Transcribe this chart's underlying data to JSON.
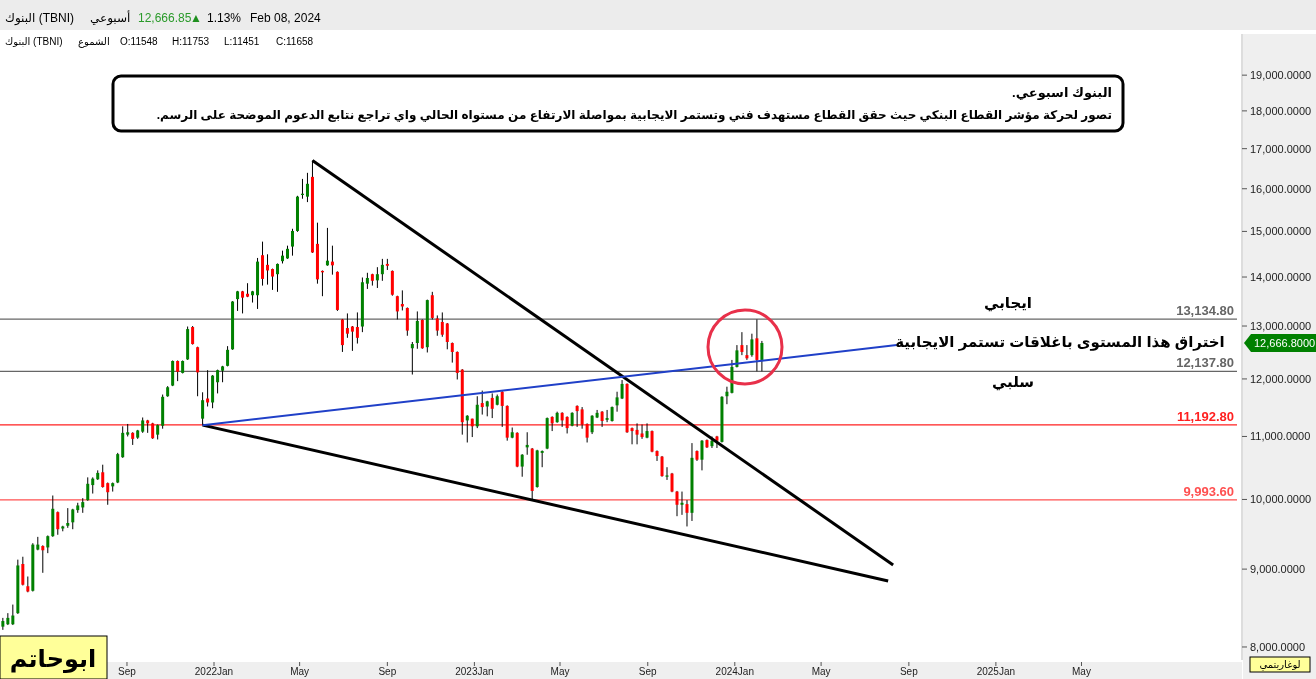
{
  "chart_data": {
    "type": "candlestick",
    "title": "البنوك اسبوعي.",
    "subtitle": "تصور لحركة مؤشر القطاع البنكي حيث حقق القطاع مستهدف فني وتستمر الايجابية بمواصلة الارتفاع من مستواه الحالي واي تراجع نتابع الدعوم الموضحة على الرسم.",
    "log": "y",
    "colors": [
      "#008000",
      "#008000",
      "#008000",
      "#008000",
      "#ff0000",
      "#ff0000",
      "#008000",
      "#008000",
      "#ff0000",
      "#008000",
      "#008000",
      "#ff0000",
      "#008000",
      "#008000",
      "#008000",
      "#008000",
      "#008000",
      "#008000",
      "#008000",
      "#008000",
      "#ff0000",
      "#ff0000",
      "#008000",
      "#008000",
      "#008000",
      "#008000",
      "#ff0000",
      "#008000",
      "#008000",
      "#ff0000",
      "#ff0000",
      "#008000",
      "#008000",
      "#008000",
      "#008000",
      "#ff0000",
      "#008000",
      "#008000",
      "#ff0000",
      "#ff0000",
      "#008000",
      "#ff0000",
      "#008000",
      "#008000",
      "#008000",
      "#008000",
      "#008000",
      "#008000",
      "#ff0000",
      "#ff0000",
      "#008000",
      "#008000",
      "#ff0000",
      "#ff0000",
      "#ff0000",
      "#008000",
      "#008000",
      "#008000",
      "#008000",
      "#008000",
      "#008000",
      "#008000",
      "#ff0000",
      "#ff0000",
      "#ff0000",
      "#008000",
      "#ff0000",
      "#ff0000",
      "#ff0000",
      "#ff0000",
      "#ff0000",
      "#ff0000",
      "#008000",
      "#008000",
      "#ff0000",
      "#008000",
      "#008000",
      "#ff0000",
      "#ff0000",
      "#ff0000",
      "#ff0000",
      "#ff0000",
      "#008000",
      "#008000",
      "#ff0000",
      "#008000",
      "#ff0000",
      "#ff0000",
      "#ff0000",
      "#ff0000",
      "#ff0000",
      "#ff0000",
      "#ff0000",
      "#008000",
      "#ff0000",
      "#008000",
      "#ff0000",
      "#008000",
      "#ff0000",
      "#008000",
      "#ff0000",
      "#ff0000",
      "#008000",
      "#ff0000",
      "#008000",
      "#008000",
      "#ff0000",
      "#008000",
      "#008000",
      "#008000",
      "#ff0000",
      "#008000",
      "#ff0000",
      "#ff0000",
      "#008000",
      "#ff0000",
      "#ff0000",
      "#ff0000",
      "#008000",
      "#008000",
      "#ff0000",
      "#008000",
      "#008000",
      "#008000",
      "#008000",
      "#ff0000",
      "#ff0000",
      "#ff0000",
      "#ff0000",
      "#008000",
      "#ff0000",
      "#ff0000",
      "#ff0000",
      "#008000",
      "#ff0000",
      "#ff0000",
      "#008000",
      "#ff0000",
      "#008000",
      "#ff0000",
      "#008000",
      "#ff0000",
      "#008000",
      "#ff0000",
      "#008000",
      "#008000",
      "#008000",
      "#008000",
      "#ff0000",
      "#ff0000",
      "#008000",
      "#ff0000",
      "#008000"
    ],
    "xlim": [
      "2021-03-07",
      "2025-12-12"
    ],
    "xticks": [
      {
        "value": "2021-09-01",
        "label": "Sep"
      },
      {
        "value": "2022-01-01",
        "label": "2022Jan"
      },
      {
        "value": "2022-05-01",
        "label": "May"
      },
      {
        "value": "2022-09-01",
        "label": "Sep"
      },
      {
        "value": "2023-01-01",
        "label": "2023Jan"
      },
      {
        "value": "2023-05-01",
        "label": "May"
      },
      {
        "value": "2023-09-01",
        "label": "Sep"
      },
      {
        "value": "2024-01-01",
        "label": "2024Jan"
      },
      {
        "value": "2024-05-01",
        "label": "May"
      },
      {
        "value": "2024-09-01",
        "label": "Sep"
      },
      {
        "value": "2025-01-01",
        "label": "2025Jan"
      },
      {
        "value": "2025-05-01",
        "label": "May"
      }
    ],
    "ylim": [
      7844,
      20220
    ],
    "yticks": [
      {
        "value": 8000,
        "label": "8,000.0000"
      },
      {
        "value": 9000,
        "label": "9,000.0000"
      },
      {
        "value": 10000,
        "label": "10,000.0000"
      },
      {
        "value": 11000,
        "label": "11,000.0000"
      },
      {
        "value": 12000,
        "label": "12,000.0000"
      },
      {
        "value": 13000,
        "label": "13,000.0000"
      },
      {
        "value": 14000,
        "label": "14,000.0000"
      },
      {
        "value": 15000,
        "label": "15,000.0000"
      },
      {
        "value": 16000,
        "label": "16,000.0000"
      },
      {
        "value": 17000,
        "label": "17,000.0000"
      },
      {
        "value": 18000,
        "label": "18,000.0000"
      },
      {
        "value": 19000,
        "label": "19,000.0000"
      }
    ],
    "x": [
      "2021-03-11",
      "2021-03-18",
      "2021-03-25",
      "2021-04-01",
      "2021-04-08",
      "2021-04-15",
      "2021-04-22",
      "2021-04-29",
      "2021-05-06",
      "2021-05-13",
      "2021-05-20",
      "2021-05-27",
      "2021-06-03",
      "2021-06-10",
      "2021-06-17",
      "2021-06-24",
      "2021-07-01",
      "2021-07-08",
      "2021-07-15",
      "2021-07-22",
      "2021-07-29",
      "2021-08-05",
      "2021-08-12",
      "2021-08-19",
      "2021-08-26",
      "2021-09-02",
      "2021-09-09",
      "2021-09-16",
      "2021-09-23",
      "2021-09-30",
      "2021-10-07",
      "2021-10-14",
      "2021-10-21",
      "2021-10-28",
      "2021-11-04",
      "2021-11-11",
      "2021-11-18",
      "2021-11-25",
      "2021-12-02",
      "2021-12-09",
      "2021-12-16",
      "2021-12-23",
      "2021-12-30",
      "2022-01-06",
      "2022-01-13",
      "2022-01-20",
      "2022-01-27",
      "2022-02-03",
      "2022-02-10",
      "2022-02-17",
      "2022-02-24",
      "2022-03-03",
      "2022-03-10",
      "2022-03-17",
      "2022-03-24",
      "2022-03-31",
      "2022-04-07",
      "2022-04-14",
      "2022-04-21",
      "2022-04-28",
      "2022-05-05",
      "2022-05-12",
      "2022-05-19",
      "2022-05-26",
      "2022-06-02",
      "2022-06-09",
      "2022-06-16",
      "2022-06-23",
      "2022-06-30",
      "2022-07-07",
      "2022-07-14",
      "2022-07-21",
      "2022-07-28",
      "2022-08-04",
      "2022-08-11",
      "2022-08-18",
      "2022-08-25",
      "2022-09-01",
      "2022-09-08",
      "2022-09-15",
      "2022-09-22",
      "2022-09-29",
      "2022-10-06",
      "2022-10-13",
      "2022-10-20",
      "2022-10-27",
      "2022-11-03",
      "2022-11-10",
      "2022-11-17",
      "2022-11-24",
      "2022-12-01",
      "2022-12-08",
      "2022-12-15",
      "2022-12-22",
      "2022-12-29",
      "2023-01-05",
      "2023-01-12",
      "2023-01-19",
      "2023-01-26",
      "2023-02-02",
      "2023-02-09",
      "2023-02-16",
      "2023-02-23",
      "2023-03-02",
      "2023-03-09",
      "2023-03-16",
      "2023-03-23",
      "2023-03-30",
      "2023-04-06",
      "2023-04-13",
      "2023-04-20",
      "2023-04-27",
      "2023-05-04",
      "2023-05-11",
      "2023-05-18",
      "2023-05-25",
      "2023-06-01",
      "2023-06-08",
      "2023-06-15",
      "2023-06-22",
      "2023-06-29",
      "2023-07-06",
      "2023-07-13",
      "2023-07-20",
      "2023-07-27",
      "2023-08-03",
      "2023-08-10",
      "2023-08-17",
      "2023-08-24",
      "2023-08-31",
      "2023-09-07",
      "2023-09-14",
      "2023-09-21",
      "2023-09-28",
      "2023-10-05",
      "2023-10-12",
      "2023-10-19",
      "2023-10-26",
      "2023-11-02",
      "2023-11-09",
      "2023-11-16",
      "2023-11-23",
      "2023-11-30",
      "2023-12-07",
      "2023-12-14",
      "2023-12-21",
      "2023-12-28",
      "2024-01-04",
      "2024-01-11",
      "2024-01-18",
      "2024-01-25",
      "2024-02-01",
      "2024-02-08"
    ],
    "ohlc": [
      [
        8250,
        8360,
        8210,
        8320
      ],
      [
        8280,
        8420,
        8270,
        8360
      ],
      [
        8280,
        8530,
        8270,
        8390
      ],
      [
        8420,
        9130,
        8410,
        9050
      ],
      [
        9070,
        9170,
        8780,
        8790
      ],
      [
        8770,
        8900,
        8690,
        8700
      ],
      [
        8710,
        9360,
        8700,
        9340
      ],
      [
        9270,
        9450,
        9260,
        9340
      ],
      [
        9320,
        9330,
        8950,
        9260
      ],
      [
        9300,
        9470,
        9220,
        9460
      ],
      [
        9460,
        10060,
        9450,
        9860
      ],
      [
        9810,
        9820,
        9480,
        9560
      ],
      [
        9570,
        9610,
        9530,
        9600
      ],
      [
        9610,
        9870,
        9580,
        9650
      ],
      [
        9660,
        9860,
        9560,
        9850
      ],
      [
        9840,
        9950,
        9800,
        9910
      ],
      [
        9880,
        10020,
        9800,
        9960
      ],
      [
        9990,
        10340,
        9980,
        10240
      ],
      [
        10220,
        10340,
        10090,
        10320
      ],
      [
        10310,
        10450,
        10300,
        10410
      ],
      [
        10420,
        10540,
        10180,
        10190
      ],
      [
        10250,
        10260,
        9920,
        10110
      ],
      [
        10200,
        10260,
        10120,
        10250
      ],
      [
        10260,
        10730,
        10250,
        10710
      ],
      [
        10660,
        11170,
        10650,
        11060
      ],
      [
        11030,
        11210,
        11000,
        11070
      ],
      [
        11060,
        11070,
        10860,
        10960
      ],
      [
        10980,
        11110,
        10960,
        11100
      ],
      [
        11080,
        11320,
        11060,
        11270
      ],
      [
        11270,
        11280,
        11060,
        11220
      ],
      [
        11220,
        11230,
        10960,
        10970
      ],
      [
        11030,
        11200,
        10950,
        11190
      ],
      [
        11180,
        11720,
        11130,
        11680
      ],
      [
        11690,
        11870,
        11680,
        11850
      ],
      [
        11880,
        12340,
        11870,
        12330
      ],
      [
        12330,
        12340,
        11960,
        12130
      ],
      [
        12110,
        12340,
        12100,
        12330
      ],
      [
        12360,
        12990,
        12350,
        12940
      ],
      [
        12980,
        13000,
        12640,
        12650
      ],
      [
        12590,
        12600,
        11690,
        12120
      ],
      [
        11300,
        11760,
        11190,
        11620
      ],
      [
        11650,
        12160,
        11510,
        11580
      ],
      [
        11580,
        12070,
        11480,
        12060
      ],
      [
        11940,
        12170,
        11740,
        12160
      ],
      [
        12150,
        12240,
        11940,
        12230
      ],
      [
        12240,
        12610,
        12230,
        12540
      ],
      [
        12550,
        13500,
        12540,
        13490
      ],
      [
        13540,
        13710,
        13300,
        13700
      ],
      [
        13700,
        13710,
        13250,
        13570
      ],
      [
        13650,
        13870,
        13580,
        13590
      ],
      [
        13620,
        13710,
        13470,
        13700
      ],
      [
        13620,
        14410,
        13340,
        14330
      ],
      [
        14470,
        14770,
        13820,
        13960
      ],
      [
        14260,
        14490,
        13840,
        14140
      ],
      [
        14170,
        14180,
        13730,
        14010
      ],
      [
        14060,
        14290,
        13690,
        14280
      ],
      [
        14340,
        14570,
        14290,
        14460
      ],
      [
        14400,
        14680,
        14390,
        14610
      ],
      [
        14660,
        15060,
        14460,
        15010
      ],
      [
        15010,
        15830,
        14990,
        15810
      ],
      [
        15850,
        16240,
        15760,
        15880
      ],
      [
        15810,
        16390,
        15680,
        16120
      ],
      [
        16290,
        16700,
        14520,
        14530
      ],
      [
        14720,
        15200,
        13860,
        13950
      ],
      [
        14130,
        14140,
        13600,
        14100
      ],
      [
        14250,
        15080,
        14240,
        14350
      ],
      [
        14330,
        14680,
        14050,
        14250
      ],
      [
        14110,
        14120,
        13300,
        13320
      ],
      [
        13130,
        13140,
        12500,
        12630
      ],
      [
        12960,
        13250,
        12770,
        12850
      ],
      [
        12990,
        13000,
        12520,
        12890
      ],
      [
        12980,
        13270,
        12660,
        12770
      ],
      [
        12990,
        13990,
        12880,
        13890
      ],
      [
        13860,
        14090,
        13750,
        13980
      ],
      [
        14060,
        14070,
        13820,
        13920
      ],
      [
        13930,
        14210,
        13770,
        14060
      ],
      [
        14060,
        14390,
        13920,
        14260
      ],
      [
        14280,
        14390,
        14150,
        14240
      ],
      [
        14130,
        14140,
        13610,
        13630
      ],
      [
        13600,
        13610,
        13130,
        13290
      ],
      [
        13440,
        13720,
        13310,
        13390
      ],
      [
        13360,
        13370,
        12810,
        12910
      ],
      [
        12570,
        12690,
        12080,
        12650
      ],
      [
        12670,
        13290,
        12560,
        13100
      ],
      [
        13120,
        13130,
        12560,
        12570
      ],
      [
        12590,
        13530,
        12490,
        13520
      ],
      [
        13620,
        13690,
        13130,
        13160
      ],
      [
        13150,
        13210,
        12810,
        12910
      ],
      [
        13080,
        13270,
        12790,
        12830
      ],
      [
        13050,
        13060,
        12550,
        12690
      ],
      [
        12670,
        12680,
        12300,
        12500
      ],
      [
        12500,
        12510,
        11990,
        12110
      ],
      [
        12170,
        12180,
        11030,
        11240
      ],
      [
        11270,
        11360,
        10900,
        11350
      ],
      [
        11300,
        11300,
        10990,
        11170
      ],
      [
        11170,
        11690,
        11140,
        11540
      ],
      [
        11570,
        11790,
        11370,
        11500
      ],
      [
        11510,
        11610,
        11340,
        11600
      ],
      [
        11660,
        11740,
        11310,
        11470
      ],
      [
        11540,
        11720,
        11530,
        11690
      ],
      [
        11770,
        11780,
        11160,
        11520
      ],
      [
        11520,
        11530,
        10930,
        10980
      ],
      [
        10980,
        11150,
        10970,
        11070
      ],
      [
        11060,
        11070,
        10500,
        10510
      ],
      [
        10510,
        10710,
        10350,
        10700
      ],
      [
        10820,
        11070,
        10700,
        10860
      ],
      [
        10800,
        10810,
        10000,
        10130
      ],
      [
        10190,
        10780,
        10180,
        10770
      ],
      [
        10730,
        10770,
        10500,
        10760
      ],
      [
        10800,
        11320,
        10790,
        11310
      ],
      [
        11330,
        11340,
        11090,
        11220
      ],
      [
        11240,
        11420,
        11230,
        11400
      ],
      [
        11400,
        11410,
        11160,
        11270
      ],
      [
        11330,
        11340,
        11050,
        11140
      ],
      [
        11180,
        11410,
        11170,
        11400
      ],
      [
        11520,
        11530,
        11160,
        11430
      ],
      [
        11460,
        11500,
        11130,
        11200
      ],
      [
        11210,
        11220,
        10900,
        10980
      ],
      [
        11070,
        11360,
        11040,
        11350
      ],
      [
        11320,
        11450,
        11310,
        11400
      ],
      [
        11420,
        11430,
        11160,
        11260
      ],
      [
        11280,
        11450,
        11240,
        11310
      ],
      [
        11260,
        11510,
        11250,
        11500
      ],
      [
        11530,
        11770,
        11420,
        11670
      ],
      [
        11650,
        11980,
        11640,
        11910
      ],
      [
        11910,
        11920,
        11060,
        11070
      ],
      [
        11140,
        11150,
        10870,
        11090
      ],
      [
        11110,
        11220,
        10870,
        11030
      ],
      [
        11050,
        11200,
        10960,
        10990
      ],
      [
        10980,
        11220,
        10970,
        11090
      ],
      [
        11090,
        11100,
        10740,
        10750
      ],
      [
        10760,
        10770,
        10600,
        10680
      ],
      [
        10670,
        10680,
        10350,
        10360
      ],
      [
        10350,
        10500,
        10300,
        10370
      ],
      [
        10400,
        10410,
        10110,
        10120
      ],
      [
        10120,
        10130,
        9750,
        9920
      ],
      [
        9920,
        10120,
        9770,
        9950
      ],
      [
        9930,
        9990,
        9600,
        9800
      ],
      [
        9800,
        10890,
        9680,
        10650
      ],
      [
        10760,
        10770,
        10600,
        10620
      ],
      [
        10620,
        10940,
        10450,
        10930
      ],
      [
        10940,
        10950,
        10810,
        10820
      ],
      [
        10840,
        11000,
        10810,
        10930
      ],
      [
        11000,
        11010,
        10810,
        10930
      ],
      [
        10910,
        11690,
        10900,
        11680
      ],
      [
        11690,
        11860,
        11550,
        11770
      ],
      [
        11750,
        12350,
        11740,
        12220
      ],
      [
        12220,
        12630,
        12210,
        12530
      ],
      [
        12630,
        12880,
        12440,
        12500
      ],
      [
        12440,
        12630,
        12350,
        12380
      ],
      [
        12440,
        12850,
        12410,
        12740
      ],
      [
        12760,
        13130,
        12140,
        12350
      ],
      [
        12350,
        12710,
        12140,
        12670
      ]
    ],
    "series": [
      {
        "type": "line",
        "color": "#000000",
        "x": [
          "2022-05-19",
          "2024-08-10"
        ],
        "values": [
          16700,
          9057
        ]
      },
      {
        "type": "line",
        "color": "#000000",
        "x": [
          "2021-12-16",
          "2024-08-03"
        ],
        "values": [
          11190,
          8840
        ]
      },
      {
        "type": "line",
        "color": "#2040c8",
        "x": [
          "2021-12-16",
          "2024-08-15"
        ],
        "values": [
          11190,
          12630
        ]
      }
    ],
    "ref_lines": [
      {
        "axis": "y",
        "value": 13134.8,
        "label": "13,134.80",
        "color": "#666666"
      },
      {
        "axis": "y",
        "value": 12137.8,
        "label": "12,137.80",
        "color": "#666666"
      },
      {
        "axis": "y",
        "value": 11192.8,
        "label": "11,192.80",
        "color": "#ff2020"
      },
      {
        "axis": "y",
        "value": 9993.6,
        "label": "9,993.60",
        "color": "#ff5050"
      }
    ],
    "annotations": [
      "البنوك (TBNI)",
      "أسبوعي",
      "12,666.85",
      "▲",
      "1.13%",
      "Feb 08, 2024",
      "البنوك (TBNI)",
      "الشموع",
      "O:11548",
      "H:11753",
      "L:11451",
      "C:11658",
      "ابوحاتم",
      "لوغاريتمي",
      "ايجابي",
      "سلبي",
      "اختراق هذا المستوى باغلاقات تستمر الايجابية",
      "12,666.8000"
    ]
  }
}
